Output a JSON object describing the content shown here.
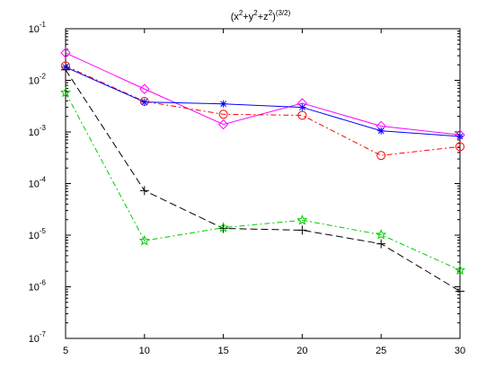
{
  "chart_data": {
    "type": "line",
    "title": {
      "base": "(x",
      "e1": "2",
      "p1": "+y",
      "e2": "2",
      "p2": "+z",
      "e3": "2",
      "p3": ")",
      "e4": "(3/2)"
    },
    "xlabel": "",
    "ylabel": "",
    "x": [
      5,
      10,
      15,
      20,
      25,
      30
    ],
    "xlim": [
      5,
      30
    ],
    "ylim": [
      1e-07,
      0.1
    ],
    "y_scale": "log",
    "grid": false,
    "x_ticks": [
      "5",
      "10",
      "15",
      "20",
      "25",
      "30"
    ],
    "y_ticks": [
      {
        "base": "10",
        "exp": "-1",
        "value": 0.1
      },
      {
        "base": "10",
        "exp": "-2",
        "value": 0.01
      },
      {
        "base": "10",
        "exp": "-3",
        "value": 0.001
      },
      {
        "base": "10",
        "exp": "-4",
        "value": 0.0001
      },
      {
        "base": "10",
        "exp": "-5",
        "value": 1e-05
      },
      {
        "base": "10",
        "exp": "-6",
        "value": 1e-06
      },
      {
        "base": "10",
        "exp": "-7",
        "value": 1e-07
      }
    ],
    "series": [
      {
        "values": [
          0.034,
          0.0068,
          0.0014,
          0.0036,
          0.0013,
          0.00088
        ],
        "color": "#ff00ff",
        "dash": "",
        "marker": "diamond"
      },
      {
        "values": [
          0.019,
          0.0039,
          0.0022,
          0.0021,
          0.00035,
          0.00052
        ],
        "color": "#ff0000",
        "dash": "6,3,2,3",
        "marker": "circle"
      },
      {
        "values": [
          0.018,
          0.0038,
          0.0035,
          0.003,
          0.00105,
          0.00082
        ],
        "color": "#0000ff",
        "dash": "",
        "marker": "asterisk"
      },
      {
        "values": [
          0.016,
          7.3e-05,
          1.35e-05,
          1.25e-05,
          6.8e-06,
          8.2e-07
        ],
        "color": "#000000",
        "dash": "8,4",
        "marker": "plus"
      },
      {
        "values": [
          0.0058,
          7.8e-06,
          1.4e-05,
          1.95e-05,
          1.02e-05,
          2.1e-06
        ],
        "color": "#00cc00",
        "dash": "6,3,2,3",
        "marker": "pentagram"
      }
    ]
  }
}
